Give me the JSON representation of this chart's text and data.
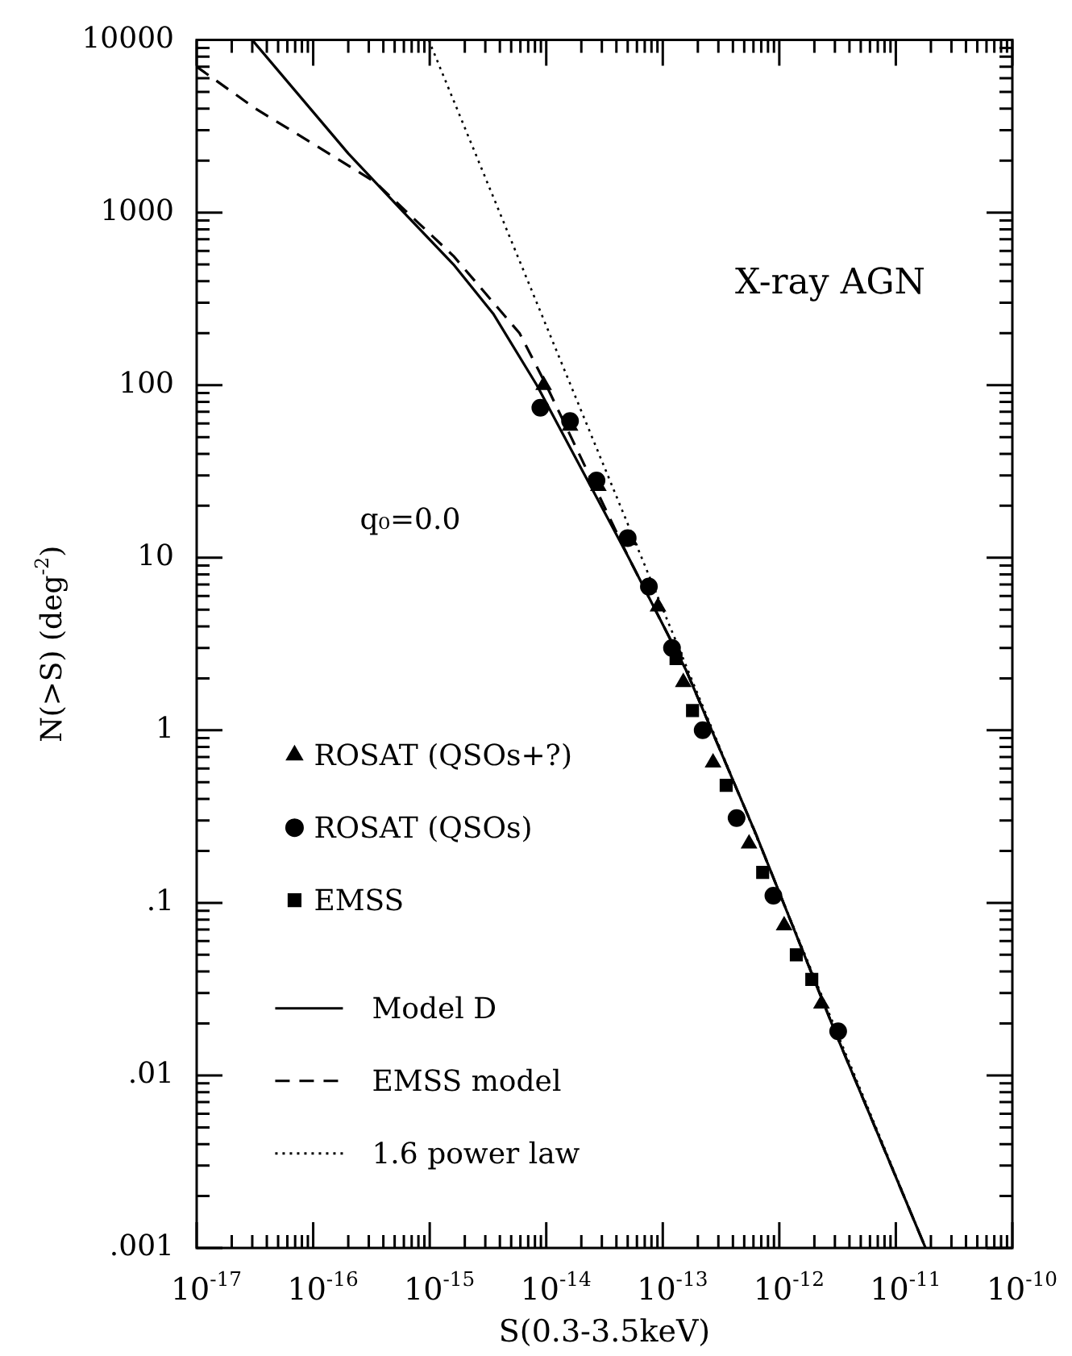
{
  "chart_data": {
    "type": "scatter",
    "xlabel": "S(0.3-3.5keV)",
    "ylabel": "N(>S) (deg$^{-2}$)",
    "annotations": [
      "X-ray AGN",
      "q₀=0.0"
    ],
    "log": "xy",
    "grid": false,
    "legend": "left",
    "xlim": [
      1e-17,
      1e-10
    ],
    "ylim": [
      0.001,
      10000
    ],
    "xticks": [
      {
        "value": 1e-17,
        "label": "10$^{-17}$"
      },
      {
        "value": 1e-16,
        "label": "10$^{-16}$"
      },
      {
        "value": 1e-15,
        "label": "10$^{-15}$"
      },
      {
        "value": 1e-14,
        "label": "10$^{-14}$"
      },
      {
        "value": 1e-13,
        "label": "10$^{-13}$"
      },
      {
        "value": 1e-12,
        "label": "10$^{-12}$"
      },
      {
        "value": 1e-11,
        "label": "10$^{-11}$"
      },
      {
        "value": 1e-10,
        "label": "10$^{-10}$"
      }
    ],
    "yticks": [
      {
        "value": 0.001,
        "label": ".001"
      },
      {
        "value": 0.01,
        "label": ".01"
      },
      {
        "value": 0.1,
        "label": ".1"
      },
      1,
      10,
      100,
      1000,
      10000
    ],
    "series": [
      {
        "name": "ROSAT (QSOs+?)",
        "type": "scatter",
        "marker": "triangle",
        "color": "#000000",
        "x": [
          9.5e-15,
          1.6e-14,
          2.8e-14,
          5.2e-14,
          9.1e-14,
          1.5e-13,
          2.7e-13,
          5.5e-13,
          1.1e-12,
          2.3e-12
        ],
        "values": [
          100,
          58,
          26,
          12.6,
          5.2,
          1.9,
          0.65,
          0.22,
          0.074,
          0.026
        ]
      },
      {
        "name": "ROSAT (QSOs)",
        "type": "scatter",
        "marker": "circle",
        "color": "#000000",
        "x": [
          8.9e-15,
          1.6e-14,
          2.7e-14,
          5e-14,
          7.6e-14,
          1.2e-13,
          2.2e-13,
          4.3e-13,
          8.9e-13,
          3.2e-12
        ],
        "values": [
          74,
          62,
          28,
          13,
          6.8,
          3.0,
          1.0,
          0.31,
          0.11,
          0.018
        ]
      },
      {
        "name": "EMSS",
        "type": "scatter",
        "marker": "square",
        "color": "#000000",
        "x": [
          1.3e-13,
          1.8e-13,
          3.5e-13,
          7.2e-13,
          1.4e-12,
          1.9e-12
        ],
        "values": [
          2.6,
          1.3,
          0.48,
          0.15,
          0.05,
          0.036
        ]
      },
      {
        "name": "Model D",
        "type": "line",
        "line_style": "solid",
        "marker": "none",
        "color": "#000000",
        "x": [
          3e-17,
          2e-16,
          6e-16,
          1.6e-15,
          3.5e-15,
          8.3e-15,
          5.1e-14,
          1.6e-13,
          6.3e-13,
          3e-12,
          1.8e-11
        ],
        "values": [
          10000,
          2200,
          1000,
          500,
          260,
          100,
          10,
          2.2,
          0.25,
          0.018,
          0.001
        ]
      },
      {
        "name": "EMSS model",
        "type": "line",
        "line_style": "dashed",
        "marker": "none",
        "color": "#000000",
        "x": [
          1e-17,
          3.2e-17,
          1e-16,
          3.4e-16,
          1.6e-15,
          5.9e-15,
          1e-14,
          5.1e-14,
          1.6e-13,
          6.3e-13,
          3e-12,
          1.8e-11
        ],
        "values": [
          7000,
          4000,
          2500,
          1500,
          560,
          200,
          100,
          10,
          2.2,
          0.25,
          0.018,
          0.001
        ]
      },
      {
        "name": "1.6 power law",
        "type": "line",
        "line_style": "dotted",
        "marker": "none",
        "color": "#000000",
        "x": [
          9.8e-16,
          1.8e-11
        ],
        "values": [
          10000,
          0.001
        ]
      }
    ]
  }
}
